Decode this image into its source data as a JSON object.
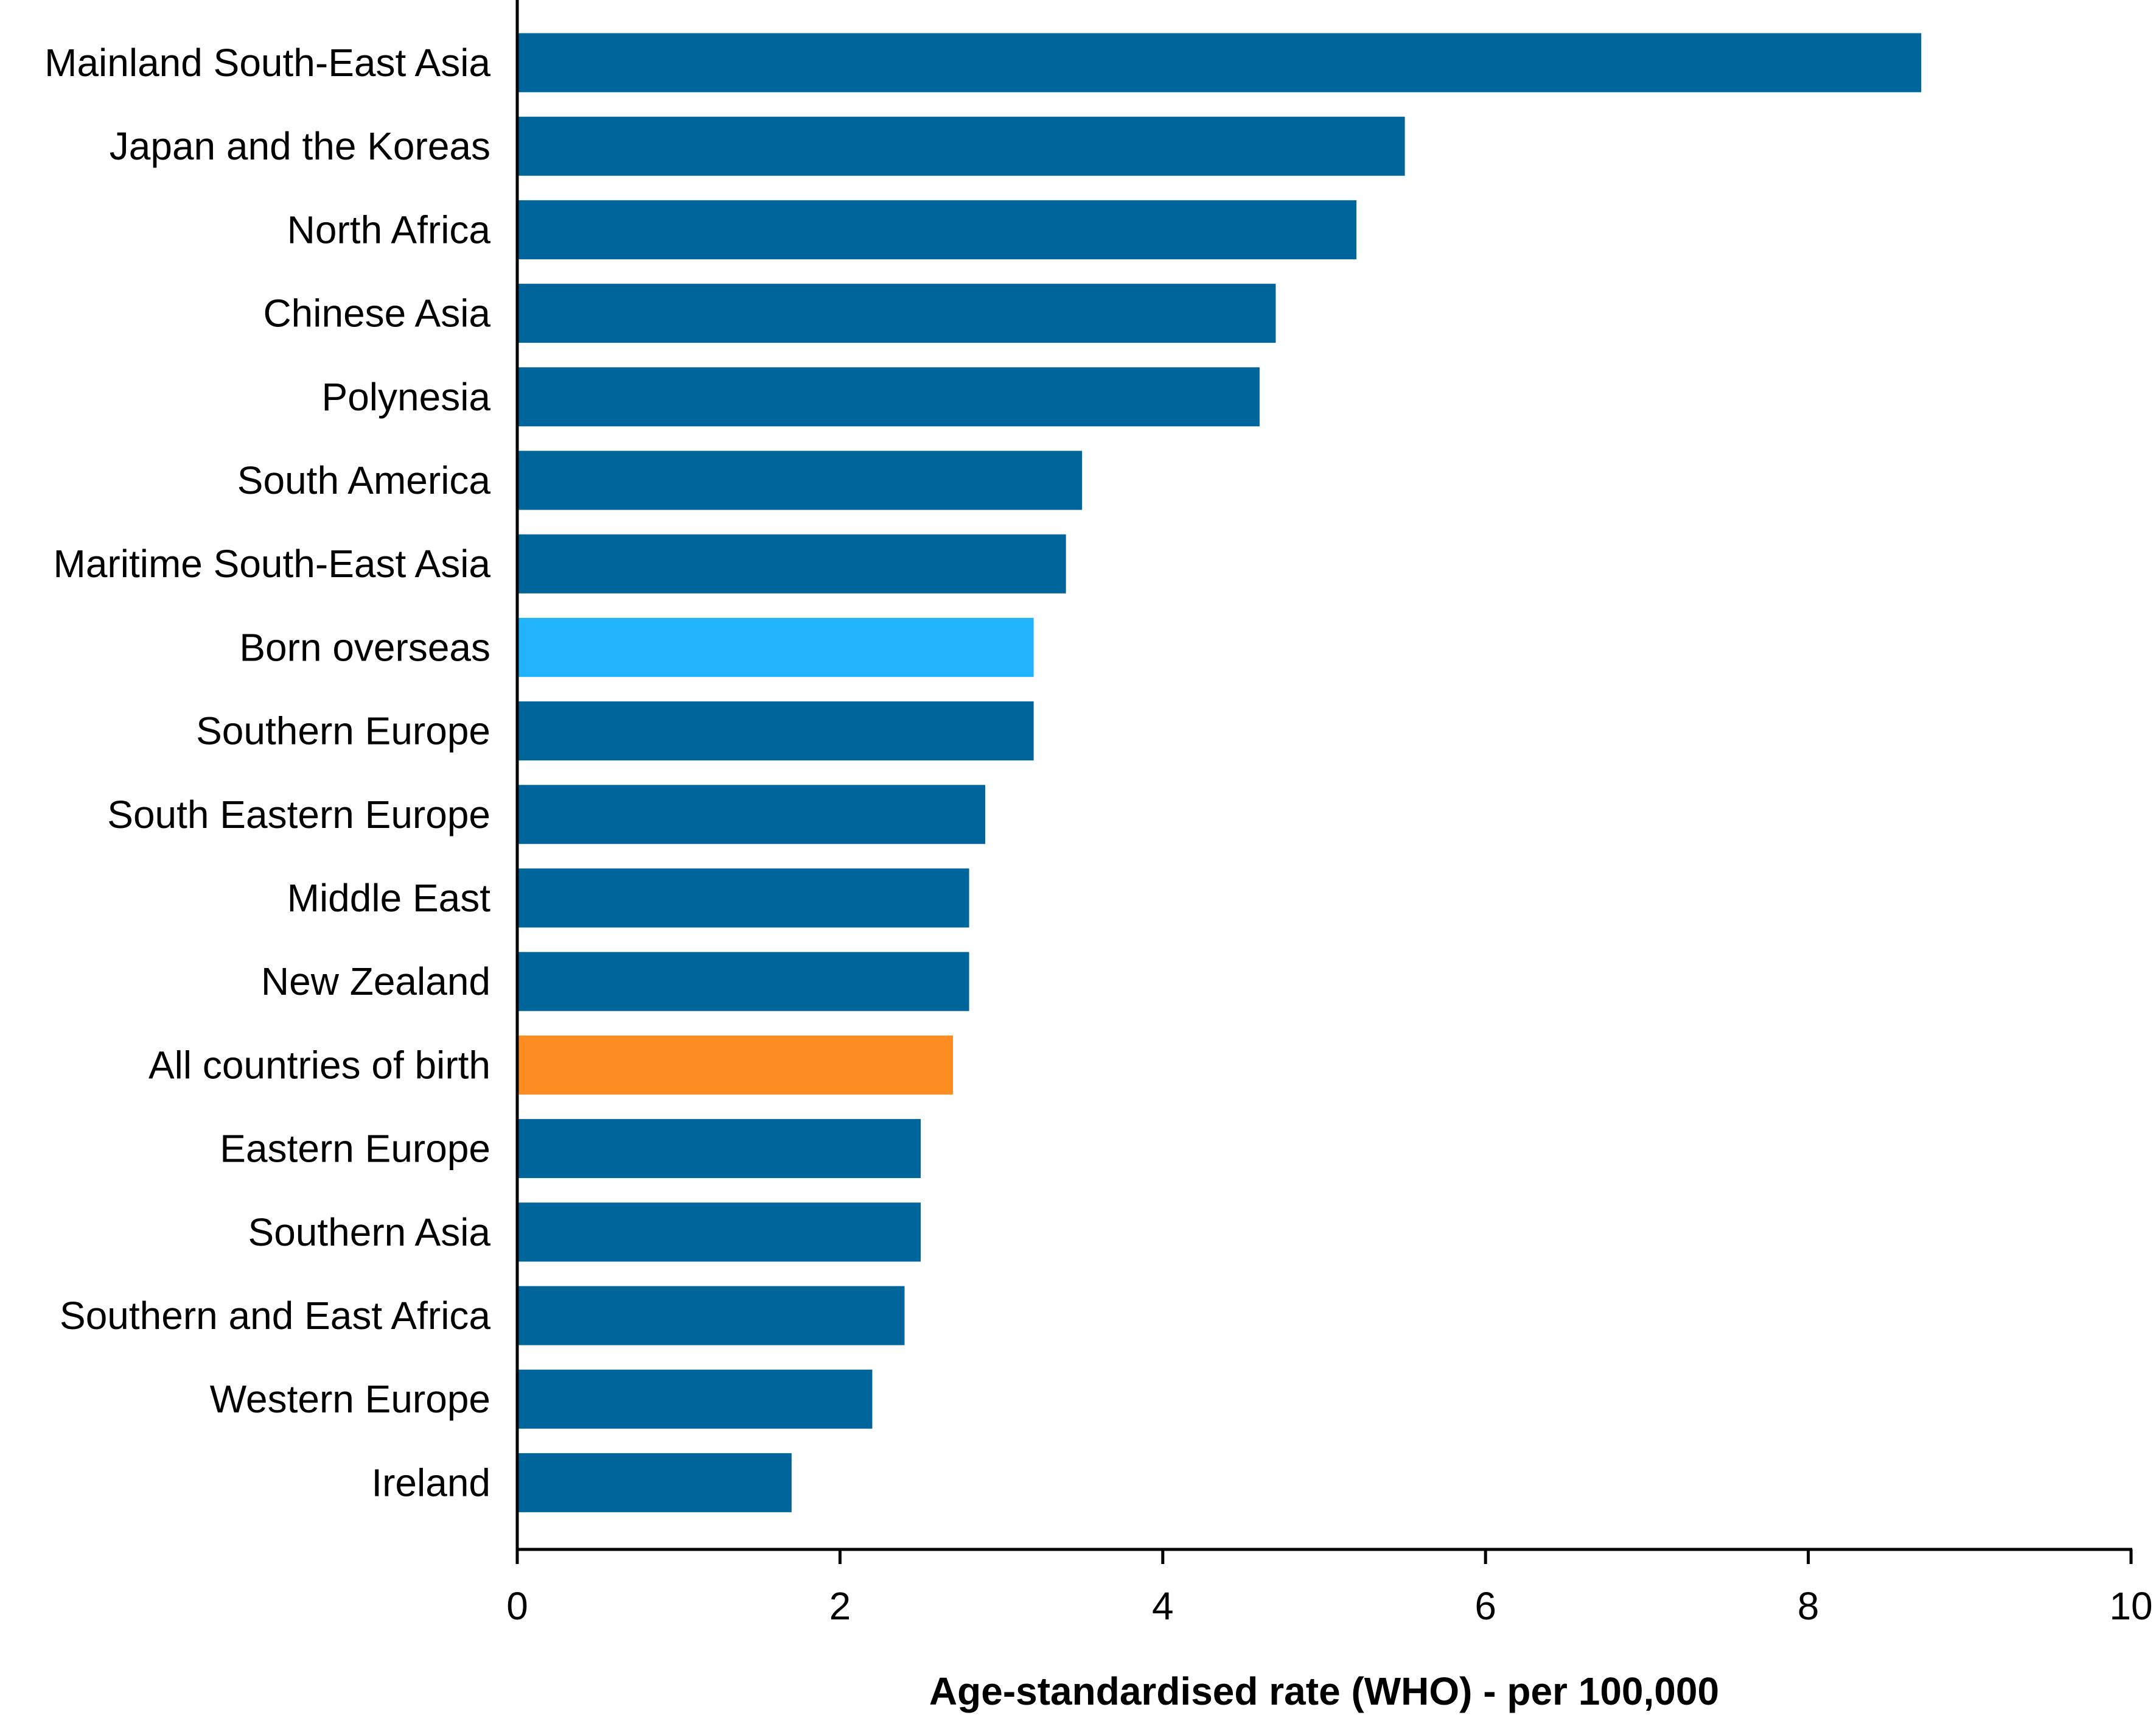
{
  "chart_data": {
    "type": "bar",
    "orientation": "horizontal",
    "title": "",
    "xlabel": "Age-standardised rate (WHO) - per 100,000",
    "ylabel": "",
    "xlim": [
      0,
      10
    ],
    "xticks": [
      0,
      2,
      4,
      6,
      8,
      10
    ],
    "grid": false,
    "legend": "none",
    "categories": [
      "Mainland South-East Asia",
      "Japan and the Koreas",
      "North Africa",
      "Chinese Asia",
      "Polynesia",
      "South America",
      "Maritime South-East Asia",
      "Born overseas",
      "Southern Europe",
      "South Eastern Europe",
      "Middle East",
      "New Zealand",
      "All countries of birth",
      "Eastern Europe",
      "Southern Asia",
      "Southern and East Africa",
      "Western Europe",
      "Ireland"
    ],
    "values": [
      8.7,
      5.5,
      5.2,
      4.7,
      4.6,
      3.5,
      3.4,
      3.2,
      3.2,
      2.9,
      2.8,
      2.8,
      2.7,
      2.5,
      2.5,
      2.4,
      2.2,
      1.7
    ],
    "colors": {
      "default": "#00659b",
      "Born overseas": "#22b4fb",
      "All countries of birth": "#fd8c22"
    }
  }
}
